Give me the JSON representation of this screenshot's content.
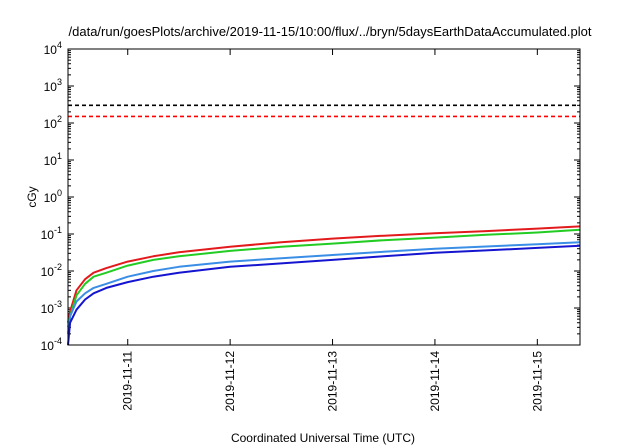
{
  "chart_data": {
    "type": "line",
    "title": "/data/run/goesPlots/archive/2019-11-15/10:00/flux/../bryn/5daysEarthDataAccumulated.plot",
    "xlabel": "Coordinated Universal Time (UTC)",
    "ylabel": "cGy",
    "x_scale": "time",
    "y_scale": "log",
    "xlim": [
      "2019-11-10 10:00",
      "2019-11-15 10:00"
    ],
    "ylim": [
      0.0001,
      10000
    ],
    "x_ticks": [
      "2019-11-11",
      "2019-11-12",
      "2019-11-13",
      "2019-11-14",
      "2019-11-15"
    ],
    "y_ticks": [
      {
        "value": 0.0001,
        "base": "10",
        "exp": "-4"
      },
      {
        "value": 0.001,
        "base": "10",
        "exp": "-3"
      },
      {
        "value": 0.01,
        "base": "10",
        "exp": "-2"
      },
      {
        "value": 0.1,
        "base": "10",
        "exp": "-1"
      },
      {
        "value": 1,
        "base": "10",
        "exp": "0"
      },
      {
        "value": 10,
        "base": "10",
        "exp": "1"
      },
      {
        "value": 100,
        "base": "10",
        "exp": "2"
      },
      {
        "value": 1000,
        "base": "10",
        "exp": "3"
      },
      {
        "value": 10000,
        "base": "10",
        "exp": "4"
      }
    ],
    "grid": false,
    "thresholds": [
      {
        "value": 300,
        "color": "#000000",
        "style": "dashed"
      },
      {
        "value": 150,
        "color": "#ff0000",
        "style": "dashed"
      }
    ],
    "series": [
      {
        "color": "#e31a1c",
        "points": [
          [
            "2019-11-10 10:00",
            0.0004
          ],
          [
            "2019-11-10 10:30",
            0.0008
          ],
          [
            "2019-11-10 12:00",
            0.003
          ],
          [
            "2019-11-10 14:00",
            0.006
          ],
          [
            "2019-11-10 16:00",
            0.009
          ],
          [
            "2019-11-10 19:00",
            0.012
          ],
          [
            "2019-11-11 00:00",
            0.018
          ],
          [
            "2019-11-11 06:00",
            0.025
          ],
          [
            "2019-11-11 12:00",
            0.032
          ],
          [
            "2019-11-12 00:00",
            0.045
          ],
          [
            "2019-11-12 12:00",
            0.06
          ],
          [
            "2019-11-13 00:00",
            0.075
          ],
          [
            "2019-11-13 12:00",
            0.09
          ],
          [
            "2019-11-14 00:00",
            0.105
          ],
          [
            "2019-11-14 12:00",
            0.12
          ],
          [
            "2019-11-15 00:00",
            0.14
          ],
          [
            "2019-11-15 10:00",
            0.16
          ]
        ]
      },
      {
        "color": "#22cc22",
        "points": [
          [
            "2019-11-10 10:00",
            0.0003
          ],
          [
            "2019-11-10 10:30",
            0.0006
          ],
          [
            "2019-11-10 12:00",
            0.0022
          ],
          [
            "2019-11-10 14:00",
            0.0045
          ],
          [
            "2019-11-10 16:00",
            0.007
          ],
          [
            "2019-11-10 19:00",
            0.009
          ],
          [
            "2019-11-11 00:00",
            0.014
          ],
          [
            "2019-11-11 06:00",
            0.02
          ],
          [
            "2019-11-11 12:00",
            0.025
          ],
          [
            "2019-11-12 00:00",
            0.035
          ],
          [
            "2019-11-12 12:00",
            0.045
          ],
          [
            "2019-11-13 00:00",
            0.055
          ],
          [
            "2019-11-13 12:00",
            0.068
          ],
          [
            "2019-11-14 00:00",
            0.08
          ],
          [
            "2019-11-14 12:00",
            0.095
          ],
          [
            "2019-11-15 00:00",
            0.11
          ],
          [
            "2019-11-15 10:00",
            0.13
          ]
        ]
      },
      {
        "color": "#3a8ee6",
        "points": [
          [
            "2019-11-10 10:00",
            0.0002
          ],
          [
            "2019-11-10 10:30",
            0.0006
          ],
          [
            "2019-11-10 12:00",
            0.0015
          ],
          [
            "2019-11-10 14:00",
            0.0025
          ],
          [
            "2019-11-10 16:00",
            0.0035
          ],
          [
            "2019-11-10 19:00",
            0.0045
          ],
          [
            "2019-11-11 00:00",
            0.007
          ],
          [
            "2019-11-11 06:00",
            0.01
          ],
          [
            "2019-11-11 12:00",
            0.013
          ],
          [
            "2019-11-12 00:00",
            0.018
          ],
          [
            "2019-11-12 12:00",
            0.022
          ],
          [
            "2019-11-13 00:00",
            0.027
          ],
          [
            "2019-11-13 12:00",
            0.033
          ],
          [
            "2019-11-14 00:00",
            0.04
          ],
          [
            "2019-11-14 12:00",
            0.046
          ],
          [
            "2019-11-15 00:00",
            0.053
          ],
          [
            "2019-11-15 10:00",
            0.06
          ]
        ]
      },
      {
        "color": "#1515d0",
        "points": [
          [
            "2019-11-10 10:00",
            0.0001
          ],
          [
            "2019-11-10 10:30",
            0.0004
          ],
          [
            "2019-11-10 12:00",
            0.0009
          ],
          [
            "2019-11-10 14:00",
            0.0017
          ],
          [
            "2019-11-10 16:00",
            0.0025
          ],
          [
            "2019-11-10 19:00",
            0.0035
          ],
          [
            "2019-11-11 00:00",
            0.005
          ],
          [
            "2019-11-11 06:00",
            0.007
          ],
          [
            "2019-11-11 12:00",
            0.009
          ],
          [
            "2019-11-12 00:00",
            0.013
          ],
          [
            "2019-11-12 12:00",
            0.016
          ],
          [
            "2019-11-13 00:00",
            0.02
          ],
          [
            "2019-11-13 12:00",
            0.025
          ],
          [
            "2019-11-14 00:00",
            0.031
          ],
          [
            "2019-11-14 12:00",
            0.036
          ],
          [
            "2019-11-15 00:00",
            0.042
          ],
          [
            "2019-11-15 10:00",
            0.048
          ]
        ]
      }
    ]
  }
}
